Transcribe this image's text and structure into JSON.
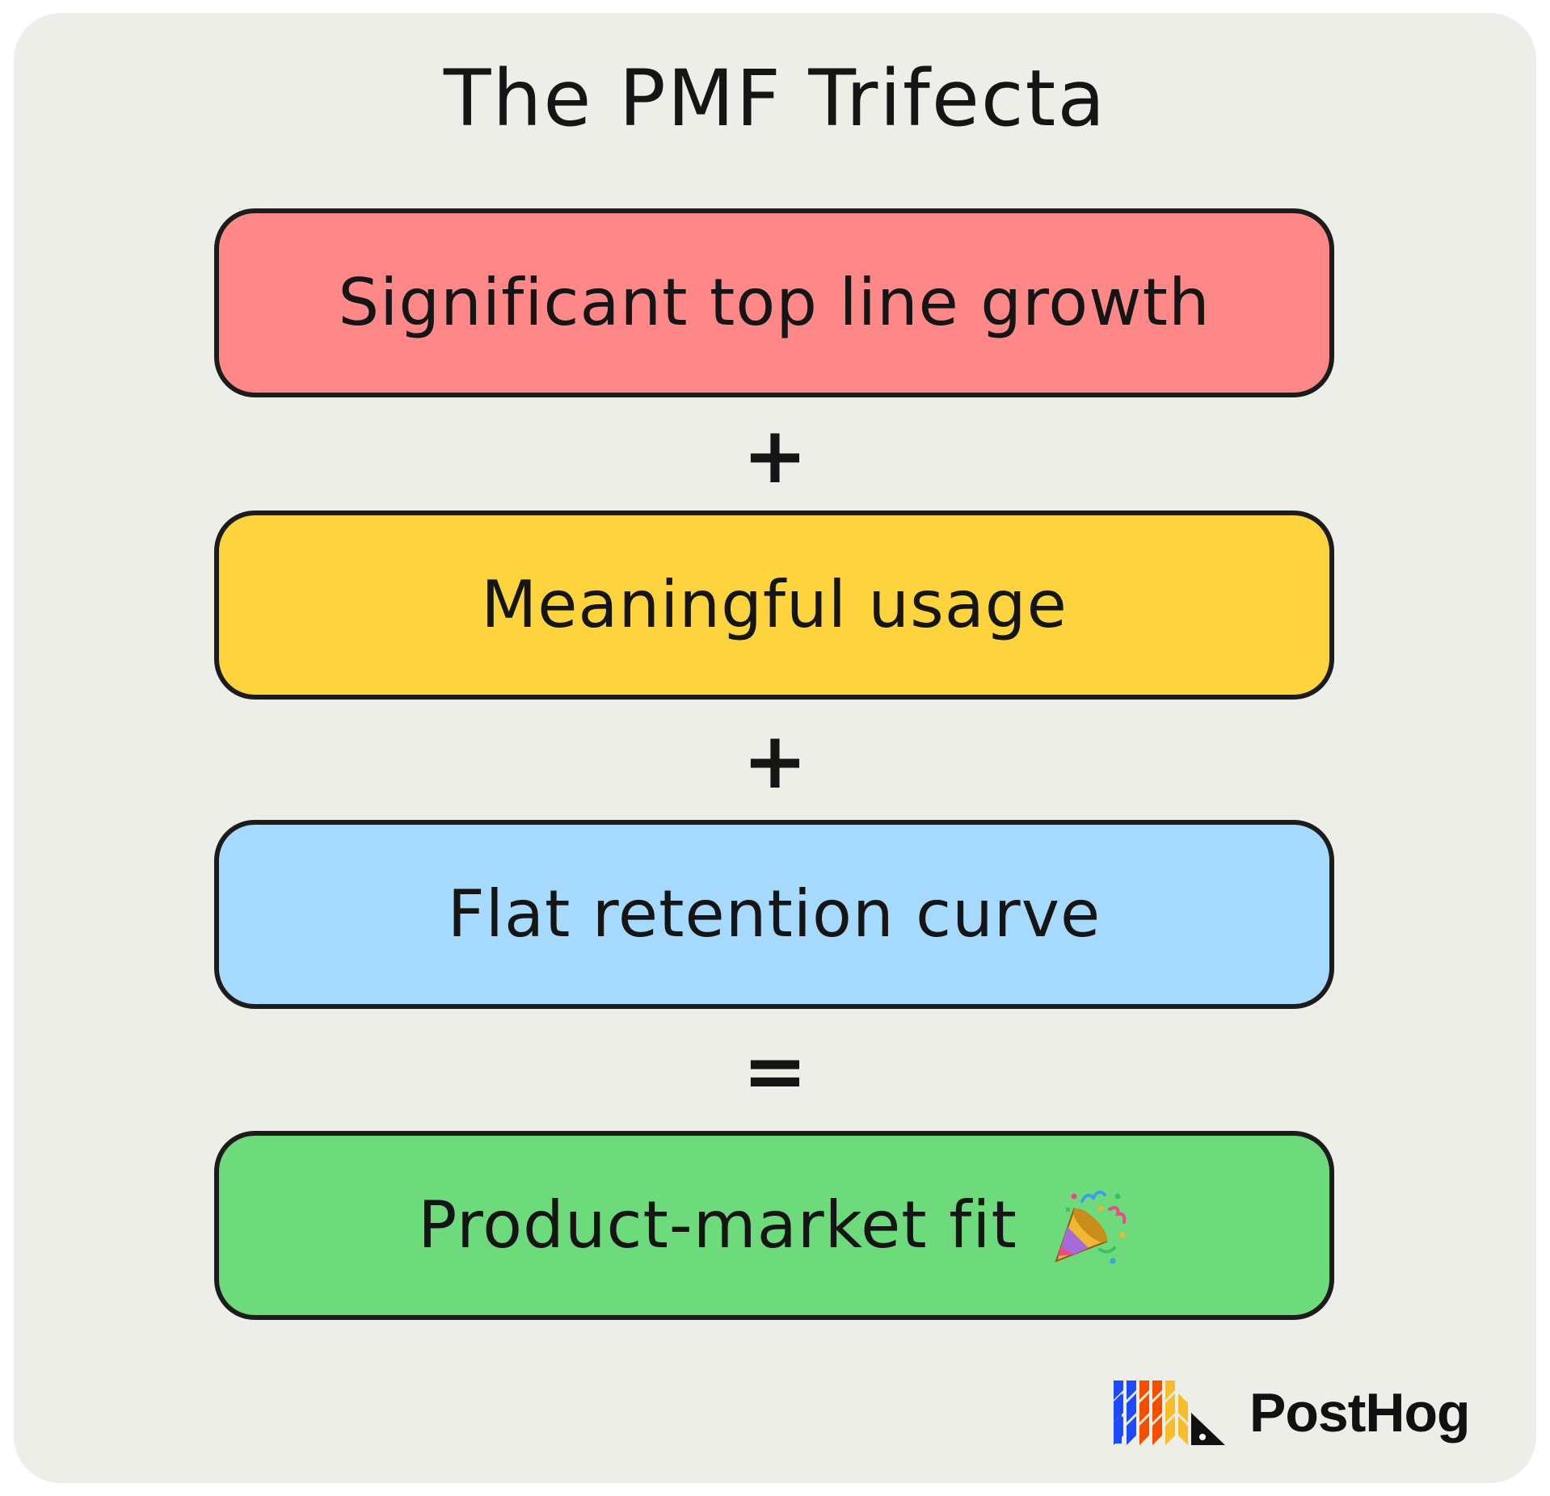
{
  "title": "The PMF Trifecta",
  "steps": [
    {
      "label": "Significant top line growth",
      "color": "#fe8888"
    },
    {
      "label": "Meaningful usage",
      "color": "#fdd33e"
    },
    {
      "label": "Flat retention curve",
      "color": "#a5d9fe"
    },
    {
      "label": "Product-market fit",
      "color": "#6dda7c"
    }
  ],
  "operators": [
    "+",
    "+",
    "="
  ],
  "result_icon": "party-popper-icon",
  "brand": {
    "name": "PostHog",
    "logo_icon": "posthog-logo-icon",
    "colors": [
      "#1d4aff",
      "#f54e00",
      "#f9bd2b",
      "#111111"
    ]
  },
  "colors": {
    "background": "#eeeee9",
    "outline": "#1c1c1c",
    "text": "#151515"
  }
}
